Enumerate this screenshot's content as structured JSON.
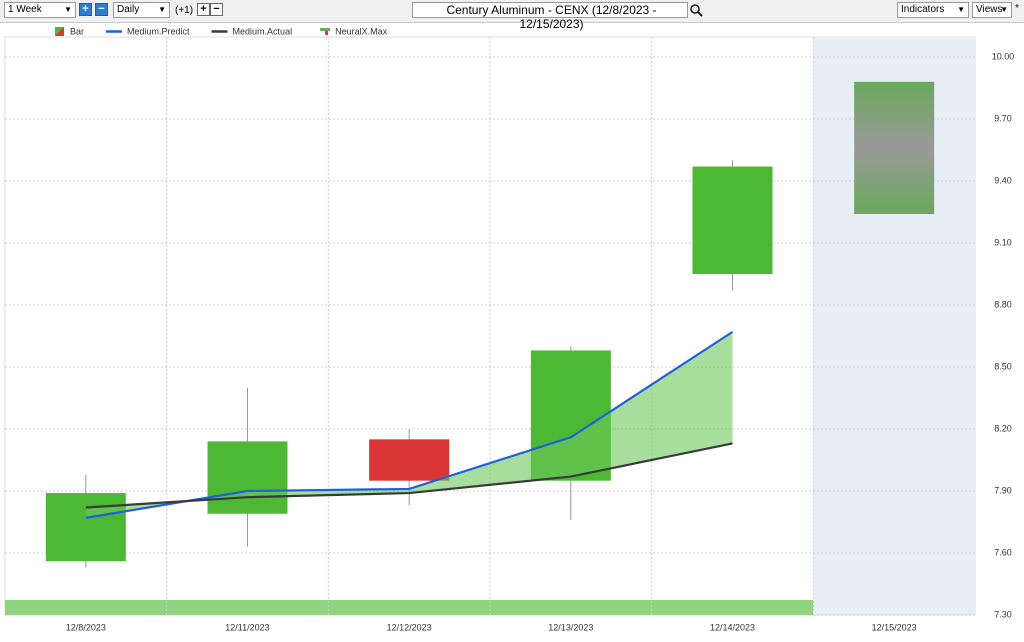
{
  "toolbar": {
    "period": "1 Week",
    "interval": "Daily",
    "offset": "(+1)",
    "title": "Century Aluminum - CENX (12/8/2023 - 12/15/2023)",
    "indicators": "Indicators",
    "views": "Views",
    "star": "*"
  },
  "chart_data": {
    "type": "candlestick",
    "categories": [
      "12/8/2023",
      "12/11/2023",
      "12/12/2023",
      "12/13/2023",
      "12/14/2023",
      "12/15/2023"
    ],
    "ylim": [
      7.3,
      10.0
    ],
    "yticks": [
      {
        "value": 7.3,
        "label": "7.30"
      },
      {
        "value": 7.6,
        "label": "7.60"
      },
      {
        "value": 7.9,
        "label": "7.90"
      },
      {
        "value": 8.2,
        "label": "8.20"
      },
      {
        "value": 8.5,
        "label": "8.50"
      },
      {
        "value": 8.8,
        "label": "8.80"
      },
      {
        "value": 9.1,
        "label": "9.10"
      },
      {
        "value": 9.4,
        "label": "9.40"
      },
      {
        "value": 9.7,
        "label": "9.70"
      },
      {
        "value": 10.0,
        "label": "10.00"
      }
    ],
    "grid": true,
    "series": [
      {
        "name": "Bar",
        "up_color": "#4cb833",
        "down_color": "#d93535",
        "open": [
          7.56,
          7.79,
          8.15,
          7.95,
          8.95,
          null
        ],
        "high": [
          7.98,
          8.4,
          8.2,
          8.6,
          9.5,
          null
        ],
        "low": [
          7.53,
          7.63,
          7.83,
          7.76,
          8.87,
          null
        ],
        "close": [
          7.89,
          8.14,
          7.95,
          8.58,
          9.47,
          null
        ]
      },
      {
        "name": "Medium.Predict",
        "color": "#1f5fe0",
        "values": [
          7.77,
          7.9,
          7.91,
          8.16,
          8.67,
          null
        ]
      },
      {
        "name": "Medium.Actual",
        "color": "#3a3a3a",
        "values": [
          7.82,
          7.87,
          7.89,
          7.97,
          8.13,
          null
        ]
      },
      {
        "name": "NeuralX.Max",
        "color": "#6aa85a",
        "low": [
          null,
          null,
          null,
          null,
          null,
          9.24
        ],
        "high": [
          null,
          null,
          null,
          null,
          null,
          9.88
        ]
      }
    ]
  }
}
